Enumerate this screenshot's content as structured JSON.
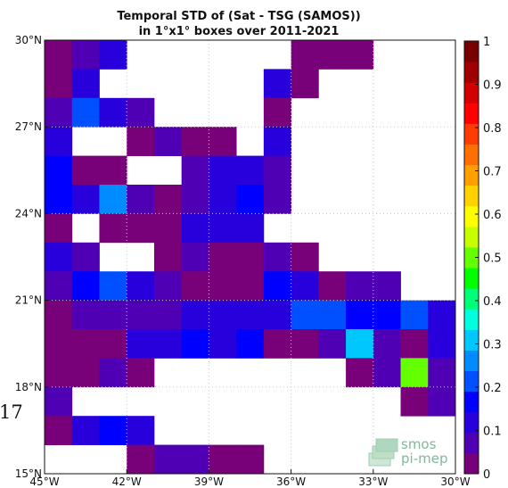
{
  "figure": {
    "title_line1": "Temporal STD of (Sat - TSG (SAMOS))",
    "title_line2": "in 1°x1° boxes over 2011-2021",
    "stray_text": "17",
    "watermark": {
      "line1": "smos",
      "line2": "pi-mep",
      "color": "#7fb89a"
    }
  },
  "chart_data": {
    "type": "heatmap",
    "title": "Temporal STD of (Sat - TSG (SAMOS)) in 1°x1° boxes over 2011-2021",
    "xlabel": "",
    "ylabel": "",
    "xlim": [
      -45,
      -30
    ],
    "ylim": [
      15,
      30
    ],
    "x_ticks": [
      -45,
      -42,
      -39,
      -36,
      -33,
      -30
    ],
    "x_tick_labels": [
      "45°W",
      "42°W",
      "39°W",
      "36°W",
      "33°W",
      "30°W"
    ],
    "y_ticks": [
      15,
      18,
      21,
      24,
      27,
      30
    ],
    "y_tick_labels": [
      "15°N",
      "18°N",
      "21°N",
      "24°N",
      "27°N",
      "30°N"
    ],
    "grid": "dotted",
    "colorbar": {
      "position": "right",
      "range": [
        0,
        1
      ],
      "ticks": [
        0,
        0.1,
        0.2,
        0.3,
        0.4,
        0.5,
        0.6,
        0.7,
        0.8,
        0.9,
        1
      ],
      "tick_labels": [
        "0",
        "0.1",
        "0.2",
        "0.3",
        "0.4",
        "0.5",
        "0.6",
        "0.7",
        "0.8",
        "0.9",
        "1"
      ],
      "colormap": "jet-like",
      "colors": [
        "#780078",
        "#5000b4",
        "#2800dc",
        "#0000ff",
        "#0050ff",
        "#008cff",
        "#00c8ff",
        "#00ffdc",
        "#00ff78",
        "#00ff00",
        "#64ff00",
        "#c8ff00",
        "#ffff00",
        "#ffd200",
        "#ffa000",
        "#ff6e00",
        "#ff3c00",
        "#ff0000",
        "#d20000",
        "#a00000",
        "#780000"
      ]
    },
    "cells": [
      {
        "lon": -44.5,
        "lat": 29.5,
        "value": 0.02
      },
      {
        "lon": -43.5,
        "lat": 29.5,
        "value": 0.06
      },
      {
        "lon": -42.5,
        "lat": 29.5,
        "value": 0.12
      },
      {
        "lon": -35.5,
        "lat": 29.5,
        "value": 0.04
      },
      {
        "lon": -34.5,
        "lat": 29.5,
        "value": 0.04
      },
      {
        "lon": -33.5,
        "lat": 29.5,
        "value": 0.04
      },
      {
        "lon": -44.5,
        "lat": 28.5,
        "value": 0.01
      },
      {
        "lon": -43.5,
        "lat": 28.5,
        "value": 0.12
      },
      {
        "lon": -36.5,
        "lat": 28.5,
        "value": 0.12
      },
      {
        "lon": -35.5,
        "lat": 28.5,
        "value": 0.01
      },
      {
        "lon": -44.5,
        "lat": 27.5,
        "value": 0.06
      },
      {
        "lon": -43.5,
        "lat": 27.5,
        "value": 0.22
      },
      {
        "lon": -42.5,
        "lat": 27.5,
        "value": 0.1
      },
      {
        "lon": -41.5,
        "lat": 27.5,
        "value": 0.06
      },
      {
        "lon": -36.5,
        "lat": 27.5,
        "value": 0.04
      },
      {
        "lon": -44.5,
        "lat": 26.5,
        "value": 0.11
      },
      {
        "lon": -41.5,
        "lat": 26.5,
        "value": 0.01
      },
      {
        "lon": -40.5,
        "lat": 26.5,
        "value": 0.06
      },
      {
        "lon": -39.5,
        "lat": 26.5,
        "value": 0.02
      },
      {
        "lon": -38.5,
        "lat": 26.5,
        "value": 0.02
      },
      {
        "lon": -36.5,
        "lat": 26.5,
        "value": 0.12
      },
      {
        "lon": -44.5,
        "lat": 25.5,
        "value": 0.16
      },
      {
        "lon": -43.5,
        "lat": 25.5,
        "value": 0.02
      },
      {
        "lon": -42.5,
        "lat": 25.5,
        "value": 0.02
      },
      {
        "lon": -39.5,
        "lat": 25.5,
        "value": 0.06
      },
      {
        "lon": -38.5,
        "lat": 25.5,
        "value": 0.12
      },
      {
        "lon": -37.5,
        "lat": 25.5,
        "value": 0.12
      },
      {
        "lon": -36.5,
        "lat": 25.5,
        "value": 0.06
      },
      {
        "lon": -44.5,
        "lat": 24.5,
        "value": 0.16
      },
      {
        "lon": -43.5,
        "lat": 24.5,
        "value": 0.1
      },
      {
        "lon": -42.5,
        "lat": 24.5,
        "value": 0.26
      },
      {
        "lon": -41.5,
        "lat": 24.5,
        "value": 0.06
      },
      {
        "lon": -40.5,
        "lat": 24.5,
        "value": 0.02
      },
      {
        "lon": -39.5,
        "lat": 24.5,
        "value": 0.06
      },
      {
        "lon": -38.5,
        "lat": 24.5,
        "value": 0.1
      },
      {
        "lon": -37.5,
        "lat": 24.5,
        "value": 0.16
      },
      {
        "lon": -36.5,
        "lat": 24.5,
        "value": 0.06
      },
      {
        "lon": -44.5,
        "lat": 23.5,
        "value": 0.01
      },
      {
        "lon": -42.5,
        "lat": 23.5,
        "value": 0.01
      },
      {
        "lon": -41.5,
        "lat": 23.5,
        "value": 0.01
      },
      {
        "lon": -40.5,
        "lat": 23.5,
        "value": 0.01
      },
      {
        "lon": -39.5,
        "lat": 23.5,
        "value": 0.12
      },
      {
        "lon": -38.5,
        "lat": 23.5,
        "value": 0.12
      },
      {
        "lon": -37.5,
        "lat": 23.5,
        "value": 0.12
      },
      {
        "lon": -44.5,
        "lat": 22.5,
        "value": 0.12
      },
      {
        "lon": -43.5,
        "lat": 22.5,
        "value": 0.06
      },
      {
        "lon": -40.5,
        "lat": 22.5,
        "value": 0.01
      },
      {
        "lon": -39.5,
        "lat": 22.5,
        "value": 0.06
      },
      {
        "lon": -38.5,
        "lat": 22.5,
        "value": 0.02
      },
      {
        "lon": -37.5,
        "lat": 22.5,
        "value": 0.02
      },
      {
        "lon": -36.5,
        "lat": 22.5,
        "value": 0.06
      },
      {
        "lon": -35.5,
        "lat": 22.5,
        "value": 0.01
      },
      {
        "lon": -44.5,
        "lat": 21.5,
        "value": 0.06
      },
      {
        "lon": -43.5,
        "lat": 21.5,
        "value": 0.17
      },
      {
        "lon": -42.5,
        "lat": 21.5,
        "value": 0.21
      },
      {
        "lon": -41.5,
        "lat": 21.5,
        "value": 0.12
      },
      {
        "lon": -40.5,
        "lat": 21.5,
        "value": 0.06
      },
      {
        "lon": -39.5,
        "lat": 21.5,
        "value": 0.02
      },
      {
        "lon": -38.5,
        "lat": 21.5,
        "value": 0.02
      },
      {
        "lon": -37.5,
        "lat": 21.5,
        "value": 0.02
      },
      {
        "lon": -36.5,
        "lat": 21.5,
        "value": 0.16
      },
      {
        "lon": -35.5,
        "lat": 21.5,
        "value": 0.12
      },
      {
        "lon": -34.5,
        "lat": 21.5,
        "value": 0.02
      },
      {
        "lon": -33.5,
        "lat": 21.5,
        "value": 0.06
      },
      {
        "lon": -32.5,
        "lat": 21.5,
        "value": 0.06
      },
      {
        "lon": -44.5,
        "lat": 20.5,
        "value": 0.02
      },
      {
        "lon": -43.5,
        "lat": 20.5,
        "value": 0.06
      },
      {
        "lon": -42.5,
        "lat": 20.5,
        "value": 0.06
      },
      {
        "lon": -41.5,
        "lat": 20.5,
        "value": 0.06
      },
      {
        "lon": -40.5,
        "lat": 20.5,
        "value": 0.06
      },
      {
        "lon": -39.5,
        "lat": 20.5,
        "value": 0.1
      },
      {
        "lon": -38.5,
        "lat": 20.5,
        "value": 0.1
      },
      {
        "lon": -37.5,
        "lat": 20.5,
        "value": 0.1
      },
      {
        "lon": -36.5,
        "lat": 20.5,
        "value": 0.1
      },
      {
        "lon": -35.5,
        "lat": 20.5,
        "value": 0.21
      },
      {
        "lon": -34.5,
        "lat": 20.5,
        "value": 0.21
      },
      {
        "lon": -33.5,
        "lat": 20.5,
        "value": 0.16
      },
      {
        "lon": -32.5,
        "lat": 20.5,
        "value": 0.16
      },
      {
        "lon": -31.5,
        "lat": 20.5,
        "value": 0.22
      },
      {
        "lon": -30.5,
        "lat": 20.5,
        "value": 0.12
      },
      {
        "lon": -44.5,
        "lat": 19.5,
        "value": 0.02
      },
      {
        "lon": -43.5,
        "lat": 19.5,
        "value": 0.02
      },
      {
        "lon": -42.5,
        "lat": 19.5,
        "value": 0.02
      },
      {
        "lon": -41.5,
        "lat": 19.5,
        "value": 0.12
      },
      {
        "lon": -40.5,
        "lat": 19.5,
        "value": 0.12
      },
      {
        "lon": -39.5,
        "lat": 19.5,
        "value": 0.16
      },
      {
        "lon": -38.5,
        "lat": 19.5,
        "value": 0.12
      },
      {
        "lon": -37.5,
        "lat": 19.5,
        "value": 0.16
      },
      {
        "lon": -36.5,
        "lat": 19.5,
        "value": 0.02
      },
      {
        "lon": -35.5,
        "lat": 19.5,
        "value": 0.02
      },
      {
        "lon": -34.5,
        "lat": 19.5,
        "value": 0.06
      },
      {
        "lon": -33.5,
        "lat": 19.5,
        "value": 0.32
      },
      {
        "lon": -32.5,
        "lat": 19.5,
        "value": 0.06
      },
      {
        "lon": -31.5,
        "lat": 19.5,
        "value": 0.01
      },
      {
        "lon": -30.5,
        "lat": 19.5,
        "value": 0.1
      },
      {
        "lon": -44.5,
        "lat": 18.5,
        "value": 0.02
      },
      {
        "lon": -43.5,
        "lat": 18.5,
        "value": 0.02
      },
      {
        "lon": -42.5,
        "lat": 18.5,
        "value": 0.06
      },
      {
        "lon": -41.5,
        "lat": 18.5,
        "value": 0.02
      },
      {
        "lon": -33.5,
        "lat": 18.5,
        "value": 0.01
      },
      {
        "lon": -32.5,
        "lat": 18.5,
        "value": 0.06
      },
      {
        "lon": -31.5,
        "lat": 18.5,
        "value": 0.52
      },
      {
        "lon": -30.5,
        "lat": 18.5,
        "value": 0.06
      },
      {
        "lon": -44.5,
        "lat": 17.5,
        "value": 0.06
      },
      {
        "lon": -31.5,
        "lat": 17.5,
        "value": 0.02
      },
      {
        "lon": -30.5,
        "lat": 17.5,
        "value": 0.06
      },
      {
        "lon": -44.5,
        "lat": 16.5,
        "value": 0.02
      },
      {
        "lon": -43.5,
        "lat": 16.5,
        "value": 0.12
      },
      {
        "lon": -42.5,
        "lat": 16.5,
        "value": 0.16
      },
      {
        "lon": -41.5,
        "lat": 16.5,
        "value": 0.12
      },
      {
        "lon": -41.5,
        "lat": 15.5,
        "value": 0.02
      },
      {
        "lon": -40.5,
        "lat": 15.5,
        "value": 0.06
      },
      {
        "lon": -39.5,
        "lat": 15.5,
        "value": 0.06
      },
      {
        "lon": -38.5,
        "lat": 15.5,
        "value": 0.02
      },
      {
        "lon": -37.5,
        "lat": 15.5,
        "value": 0.02
      }
    ]
  }
}
